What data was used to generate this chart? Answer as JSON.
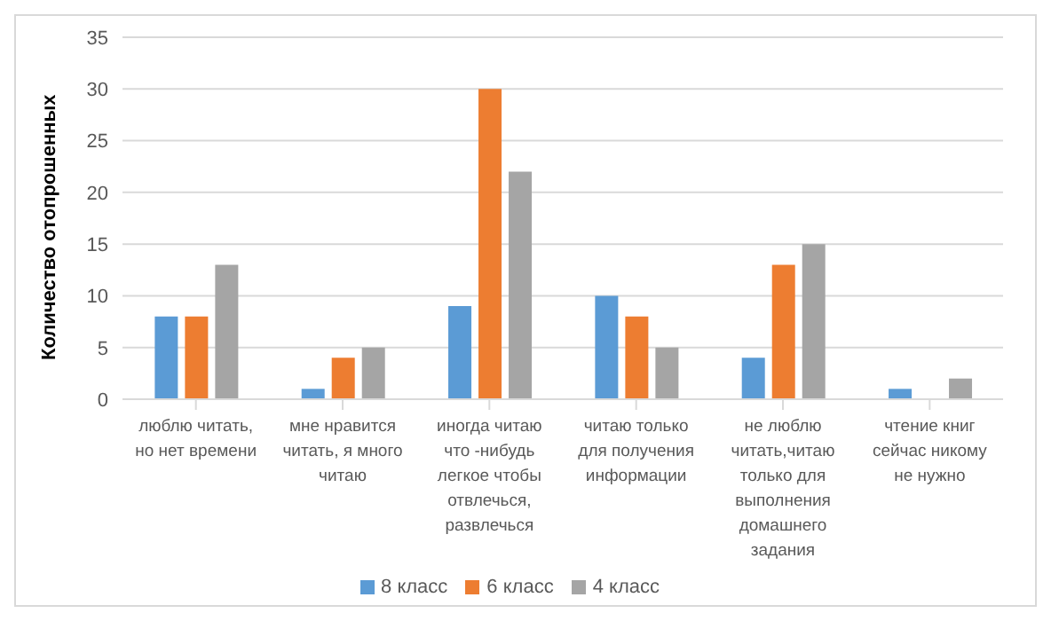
{
  "chart_data": {
    "type": "bar",
    "ylabel": "Количество отопрошенных",
    "categories": [
      "люблю читать, но нет времени",
      "мне нравится читать, я много читаю",
      "иногда читаю что -нибудь легкое чтобы отвлечься, развлечься",
      "читаю только для получения информации",
      "не люблю читать,читаю только для выполнения домашнего задания",
      "чтение книг сейчас никому не нужно"
    ],
    "series": [
      {
        "name": "8 класс",
        "color": "#5b9bd5",
        "values": [
          8,
          1,
          9,
          10,
          4,
          1
        ]
      },
      {
        "name": "6 класс",
        "color": "#ed7d31",
        "values": [
          8,
          4,
          30,
          8,
          13,
          0
        ]
      },
      {
        "name": "4 класс",
        "color": "#a5a5a5",
        "values": [
          13,
          5,
          22,
          5,
          15,
          2
        ]
      }
    ],
    "ylim": [
      0,
      35
    ],
    "yticks": [
      0,
      5,
      10,
      15,
      20,
      25,
      30,
      35
    ],
    "grid": "y",
    "legend": "bottom"
  }
}
